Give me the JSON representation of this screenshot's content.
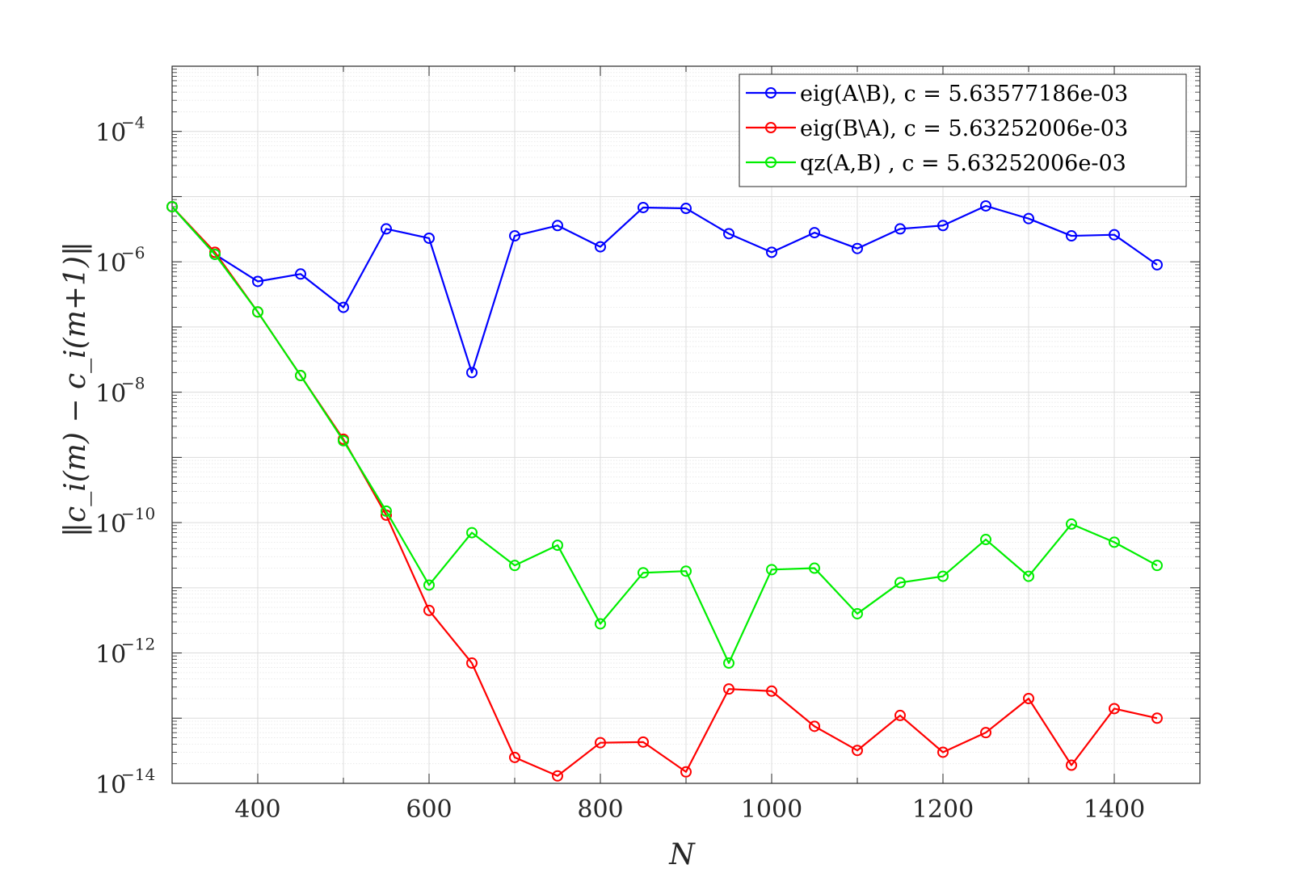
{
  "chart_data": {
    "type": "line",
    "xlabel": "N",
    "ylabel": "‖c_i(m) − c_i(m+1)‖",
    "xlim": [
      300,
      1500
    ],
    "ylim": [
      1e-14,
      0.001
    ],
    "yscale": "log",
    "grid": true,
    "minor_grid": true,
    "legend_position": "top-right",
    "x_ticks": [
      400,
      600,
      800,
      1000,
      1200,
      1400
    ],
    "y_ticks": [
      {
        "base": "10",
        "exp": "−4",
        "value": 0.0001
      },
      {
        "base": "10",
        "exp": "−6",
        "value": 1e-06
      },
      {
        "base": "10",
        "exp": "−8",
        "value": 1e-08
      },
      {
        "base": "10",
        "exp": "−10",
        "value": 1e-10
      },
      {
        "base": "10",
        "exp": "−12",
        "value": 1e-12
      },
      {
        "base": "10",
        "exp": "−14",
        "value": 1e-14
      }
    ],
    "x": [
      300,
      350,
      400,
      450,
      500,
      550,
      600,
      650,
      700,
      750,
      800,
      850,
      900,
      950,
      1000,
      1050,
      1100,
      1150,
      1200,
      1250,
      1300,
      1350,
      1400,
      1450
    ],
    "series": [
      {
        "name": "eig(A\\B), c = 5.63577186e-03",
        "color": "#0000ff",
        "values": [
          7e-06,
          1.3e-06,
          5e-07,
          6.5e-07,
          2e-07,
          3.2e-06,
          2.3e-06,
          2e-08,
          2.5e-06,
          3.6e-06,
          1.7e-06,
          6.8e-06,
          6.6e-06,
          2.7e-06,
          1.4e-06,
          2.8e-06,
          1.6e-06,
          3.2e-06,
          3.6e-06,
          7.2e-06,
          4.6e-06,
          2.5e-06,
          2.6e-06,
          9e-07
        ]
      },
      {
        "name": "eig(B\\A), c = 5.63252006e-03",
        "color": "#ff0000",
        "values": [
          7e-06,
          1.4e-06,
          1.7e-07,
          1.8e-08,
          1.9e-09,
          1.3e-10,
          4.5e-12,
          7e-13,
          2.5e-14,
          1.3e-14,
          4.2e-14,
          4.3e-14,
          1.5e-14,
          2.8e-13,
          2.6e-13,
          7.5e-14,
          3.2e-14,
          1.1e-13,
          3e-14,
          6e-14,
          2e-13,
          1.9e-14,
          1.4e-13,
          1e-13
        ]
      },
      {
        "name": "qz(A,B) , c = 5.63252006e-03",
        "color": "#00ee00",
        "values": [
          7e-06,
          1.3e-06,
          1.7e-07,
          1.8e-08,
          1.8e-09,
          1.5e-10,
          1.1e-11,
          7e-11,
          2.2e-11,
          4.5e-11,
          2.8e-12,
          1.7e-11,
          1.8e-11,
          7e-13,
          1.9e-11,
          2e-11,
          4e-12,
          1.2e-11,
          1.5e-11,
          5.5e-11,
          1.5e-11,
          9.5e-11,
          5e-11,
          2.2e-11
        ]
      }
    ]
  }
}
